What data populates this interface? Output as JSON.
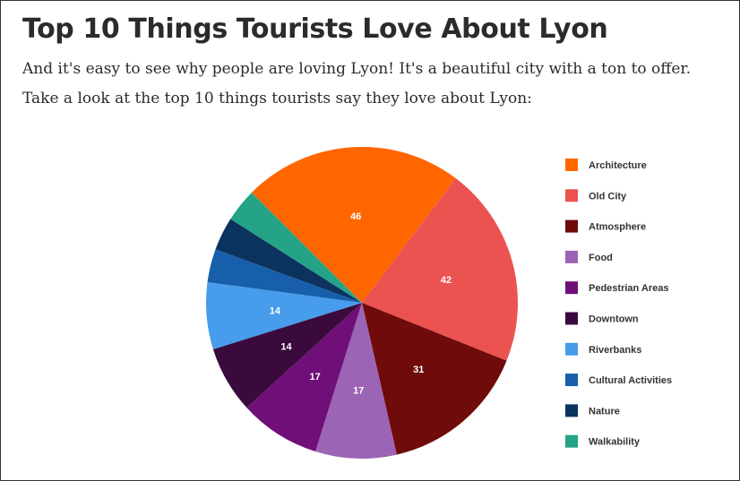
{
  "header": {
    "title": "Top 10 Things Tourists Love About Lyon",
    "paragraph1": "And it's easy to see why people are loving Lyon! It's a beautiful city with a ton to offer.",
    "paragraph2": "Take a look at the top 10 things tourists say they love about Lyon:"
  },
  "chart_data": {
    "type": "pie",
    "categories": [
      "Architecture",
      "Old City",
      "Atmosphere",
      "Food",
      "Pedestrian Areas",
      "Downtown",
      "Riverbanks",
      "Cultural Activities",
      "Nature",
      "Walkability"
    ],
    "values": [
      46,
      42,
      31,
      17,
      17,
      14,
      14,
      7,
      7,
      7
    ],
    "data_labels": [
      "46",
      "42",
      "31",
      "17",
      "17",
      "14",
      "14",
      "",
      "",
      ""
    ],
    "colors": [
      "#ff6600",
      "#eb5350",
      "#700b0b",
      "#9c64b4",
      "#700f78",
      "#3a0a3d",
      "#479ceb",
      "#175fab",
      "#0c325e",
      "#24a387"
    ],
    "legend_position": "right"
  }
}
